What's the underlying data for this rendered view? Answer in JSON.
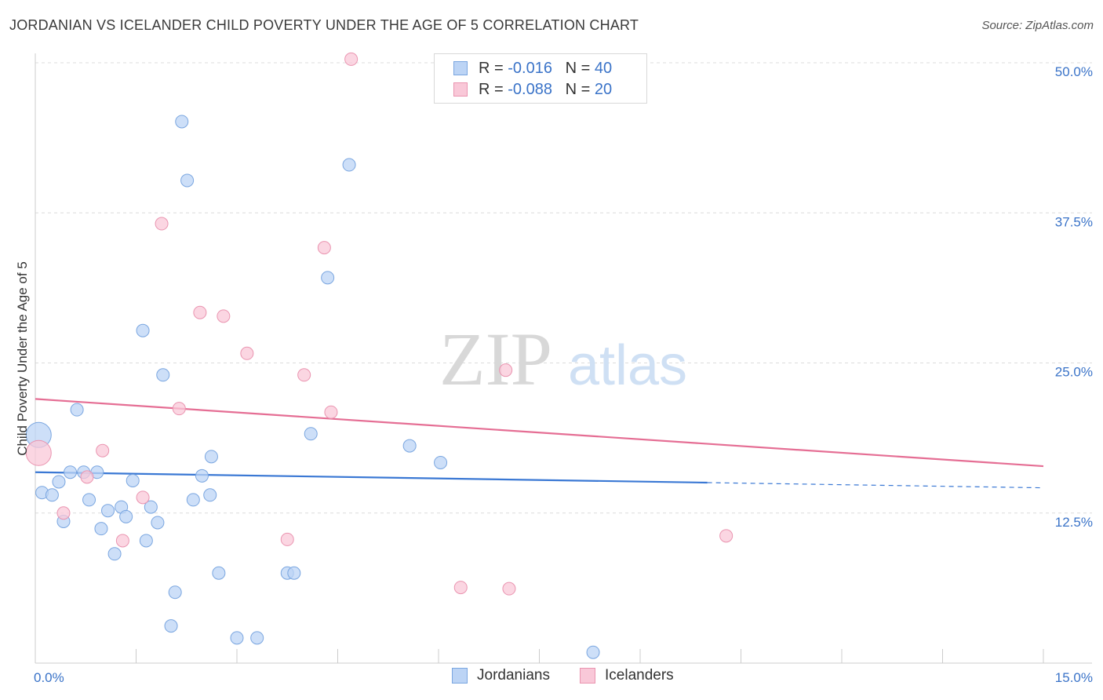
{
  "header": {
    "title": "JORDANIAN VS ICELANDER CHILD POVERTY UNDER THE AGE OF 5 CORRELATION CHART",
    "source": "Source: ZipAtlas.com"
  },
  "watermark": {
    "zip": "ZIP",
    "atlas": "atlas"
  },
  "legend": {
    "rows": [
      {
        "r_label": "R =",
        "r_value": "-0.016",
        "n_label": "N =",
        "n_value": "40",
        "fill": "#bcd4f5",
        "stroke": "#7aa6e0"
      },
      {
        "r_label": "R =",
        "r_value": "-0.088",
        "n_label": "N =",
        "n_value": "20",
        "fill": "#f9c8d8",
        "stroke": "#ea94b0"
      }
    ]
  },
  "bottom_legend": {
    "items": [
      {
        "label": "Jordanians",
        "fill": "#bcd4f5",
        "stroke": "#7aa6e0"
      },
      {
        "label": "Icelanders",
        "fill": "#f9c8d8",
        "stroke": "#ea94b0"
      }
    ]
  },
  "chart_data": {
    "type": "scatter",
    "ylabel": "Child Poverty Under the Age of 5",
    "xlim": [
      0,
      15
    ],
    "ylim": [
      0,
      50
    ],
    "x_tick_labels": [
      {
        "value": 0,
        "label": "0.0%"
      },
      {
        "value": 15,
        "label": "15.0%"
      }
    ],
    "y_tick_labels": [
      {
        "value": 12.5,
        "label": "12.5%"
      },
      {
        "value": 25,
        "label": "25.0%"
      },
      {
        "value": 37.5,
        "label": "37.5%"
      },
      {
        "value": 50,
        "label": "50.0%"
      }
    ],
    "grid": true,
    "colors": {
      "axis_text": "#3a73c8",
      "grid": "#dcdcdc"
    },
    "series": [
      {
        "name": "Jordanians",
        "color": "#3a78d4",
        "point_fill": "#bcd4f5",
        "point_stroke": "#7aa6e0",
        "trend": {
          "x0": 0,
          "y0": 15.9,
          "x1": 15,
          "y1": 14.6,
          "solid_until": 10
        },
        "points": [
          [
            0.05,
            19.0,
            "large"
          ],
          [
            0.1,
            14.2
          ],
          [
            0.25,
            14.0
          ],
          [
            0.35,
            15.1
          ],
          [
            0.42,
            11.8
          ],
          [
            0.62,
            21.1
          ],
          [
            0.52,
            15.9
          ],
          [
            0.72,
            15.9
          ],
          [
            0.92,
            15.9
          ],
          [
            0.8,
            13.6
          ],
          [
            0.98,
            11.2
          ],
          [
            1.08,
            12.7
          ],
          [
            1.18,
            9.1
          ],
          [
            1.28,
            13.0
          ],
          [
            1.35,
            12.2
          ],
          [
            1.45,
            15.2
          ],
          [
            1.6,
            27.7
          ],
          [
            1.65,
            10.2
          ],
          [
            1.72,
            13.0
          ],
          [
            1.82,
            11.7
          ],
          [
            1.9,
            24.0
          ],
          [
            2.02,
            3.1
          ],
          [
            2.08,
            5.9
          ],
          [
            2.18,
            45.1
          ],
          [
            2.26,
            40.2
          ],
          [
            2.35,
            13.6
          ],
          [
            2.48,
            15.6
          ],
          [
            2.6,
            14.0
          ],
          [
            2.62,
            17.2
          ],
          [
            2.73,
            7.5
          ],
          [
            3.0,
            2.1
          ],
          [
            3.3,
            2.1
          ],
          [
            3.75,
            7.5
          ],
          [
            3.85,
            7.5
          ],
          [
            4.1,
            19.1
          ],
          [
            4.35,
            32.1
          ],
          [
            4.67,
            41.5
          ],
          [
            5.57,
            18.1
          ],
          [
            6.03,
            16.7
          ],
          [
            8.3,
            0.9
          ]
        ]
      },
      {
        "name": "Icelanders",
        "color": "#e56e94",
        "point_fill": "#f9c8d8",
        "point_stroke": "#ea94b0",
        "trend": {
          "x0": 0,
          "y0": 22.0,
          "x1": 15,
          "y1": 16.4,
          "solid_until": 15
        },
        "points": [
          [
            0.05,
            17.5,
            "large"
          ],
          [
            0.42,
            12.5
          ],
          [
            0.77,
            15.5
          ],
          [
            1.0,
            17.7
          ],
          [
            1.3,
            10.2
          ],
          [
            1.6,
            13.8
          ],
          [
            1.88,
            36.6
          ],
          [
            2.14,
            21.2
          ],
          [
            2.45,
            29.2
          ],
          [
            2.8,
            28.9
          ],
          [
            3.15,
            25.8
          ],
          [
            3.75,
            10.3
          ],
          [
            4.0,
            24.0
          ],
          [
            4.3,
            34.6
          ],
          [
            4.4,
            20.9
          ],
          [
            4.7,
            50.3
          ],
          [
            6.33,
            6.3
          ],
          [
            7.0,
            24.4
          ],
          [
            7.05,
            6.2
          ],
          [
            10.28,
            10.6
          ]
        ]
      }
    ]
  }
}
